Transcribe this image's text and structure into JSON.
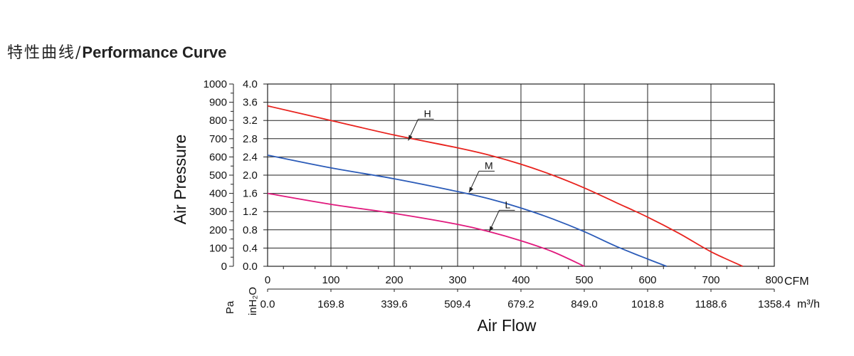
{
  "header": {
    "title_cn": "特性曲线/",
    "title_en": "Performance Curve"
  },
  "chart_data": {
    "type": "line",
    "ylabel": "Air Pressure",
    "xlabel": "Air Flow",
    "x_unit_cfm": "CFM",
    "x_unit_m3h": "m³/h",
    "y_unit_pa": "Pa",
    "y_unit_inh2o": "inH₂O",
    "xlim_cfm": [
      0,
      800
    ],
    "ylim_pa": [
      0,
      1000
    ],
    "x_ticks_cfm": [
      "0",
      "100",
      "200",
      "300",
      "400",
      "500",
      "600",
      "700",
      "800"
    ],
    "x_ticks_m3h": [
      "0.0",
      "169.8",
      "339.6",
      "509.4",
      "679.2",
      "849.0",
      "1018.8",
      "1188.6",
      "1358.4"
    ],
    "y_ticks_pa": [
      "0",
      "100",
      "200",
      "300",
      "400",
      "500",
      "600",
      "700",
      "800",
      "900",
      "1000"
    ],
    "y_ticks_inh2o": [
      "0.0",
      "0.4",
      "0.8",
      "1.2",
      "1.6",
      "2.0",
      "2.4",
      "2.8",
      "3.2",
      "3.6",
      "4.0"
    ],
    "grid": true,
    "series": [
      {
        "name": "H",
        "color": "#e8231e",
        "x": [
          0,
          100,
          200,
          300,
          350,
          400,
          450,
          500,
          550,
          600,
          650,
          700,
          750
        ],
        "y": [
          880,
          800,
          720,
          650,
          610,
          560,
          500,
          430,
          350,
          270,
          180,
          80,
          0
        ]
      },
      {
        "name": "M",
        "color": "#2b5bb8",
        "x": [
          0,
          100,
          200,
          300,
          350,
          400,
          450,
          500,
          550,
          600,
          630
        ],
        "y": [
          610,
          540,
          480,
          410,
          370,
          320,
          260,
          190,
          110,
          40,
          0
        ]
      },
      {
        "name": "L",
        "color": "#e0197d",
        "x": [
          0,
          100,
          200,
          300,
          350,
          400,
          450,
          500
        ],
        "y": [
          400,
          340,
          290,
          230,
          190,
          140,
          80,
          0
        ]
      }
    ],
    "labels": [
      {
        "series": "H",
        "text": "H",
        "at_x": 222,
        "at_y": 690
      },
      {
        "series": "M",
        "text": "M",
        "at_x": 318,
        "at_y": 405
      },
      {
        "series": "L",
        "text": "L",
        "at_x": 350,
        "at_y": 190
      }
    ]
  }
}
